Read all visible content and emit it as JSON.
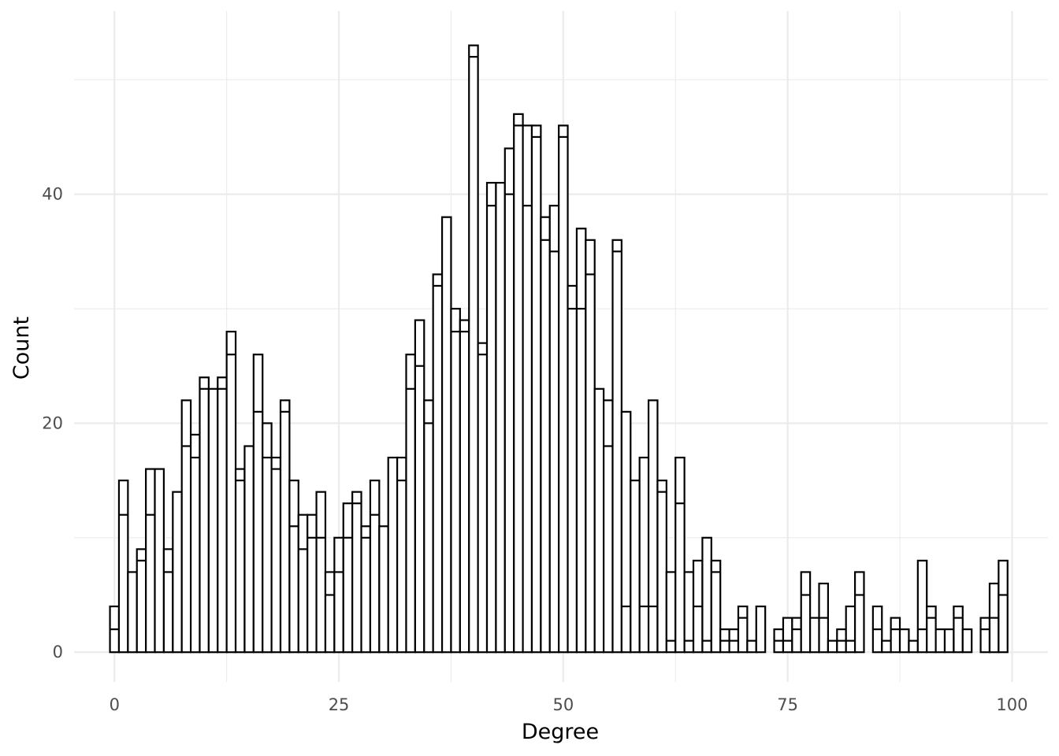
{
  "chart_data": {
    "type": "bar",
    "stacked": true,
    "xlabel": "Degree",
    "ylabel": "Count",
    "xlim": [
      -4.5,
      104
    ],
    "ylim": [
      -2.6,
      56
    ],
    "x_ticks": [
      0,
      25,
      50,
      75,
      100
    ],
    "x_tick_labels": [
      "0",
      "25",
      "50",
      "75",
      "100"
    ],
    "y_ticks": [
      0,
      20,
      40
    ],
    "y_tick_labels": [
      "0",
      "20",
      "40"
    ],
    "grid": true,
    "legend": "none",
    "x": [
      0,
      1,
      2,
      3,
      4,
      5,
      6,
      7,
      8,
      9,
      10,
      11,
      12,
      13,
      14,
      15,
      16,
      17,
      18,
      19,
      20,
      21,
      22,
      23,
      24,
      25,
      26,
      27,
      28,
      29,
      30,
      31,
      32,
      33,
      34,
      35,
      36,
      37,
      38,
      39,
      40,
      41,
      42,
      43,
      44,
      45,
      46,
      47,
      48,
      49,
      50,
      51,
      52,
      53,
      54,
      55,
      56,
      57,
      58,
      59,
      60,
      61,
      62,
      63,
      64,
      65,
      66,
      67,
      68,
      69,
      70,
      71,
      72,
      73,
      74,
      75,
      76,
      77,
      78,
      79,
      80,
      81,
      82,
      83,
      84,
      85,
      86,
      87,
      88,
      89,
      90,
      91,
      92,
      93,
      94,
      95,
      96,
      97,
      98,
      99
    ],
    "series": [
      {
        "values": [
          2,
          12,
          7,
          8,
          12,
          16,
          7,
          14,
          18,
          17,
          23,
          23,
          23,
          26,
          15,
          18,
          21,
          17,
          16,
          21,
          11,
          9,
          10,
          10,
          5,
          7,
          10,
          13,
          10,
          12,
          11,
          17,
          15,
          23,
          25,
          20,
          32,
          38,
          28,
          28,
          52,
          26,
          39,
          41,
          40,
          46,
          39,
          45,
          36,
          35,
          45,
          30,
          30,
          33,
          23,
          18,
          35,
          4,
          15,
          4,
          4,
          14,
          1,
          13,
          1,
          4,
          1,
          7,
          1,
          1,
          3,
          1,
          4,
          0,
          1,
          1,
          2,
          5,
          3,
          3,
          1,
          1,
          1,
          5,
          0,
          2,
          1,
          2,
          2,
          1,
          2,
          3,
          2,
          2,
          3,
          2,
          0,
          2,
          3,
          5
        ]
      },
      {
        "values": [
          2,
          3,
          0,
          1,
          4,
          0,
          2,
          0,
          4,
          2,
          1,
          0,
          1,
          2,
          1,
          0,
          5,
          3,
          1,
          1,
          4,
          3,
          2,
          4,
          2,
          3,
          3,
          1,
          1,
          3,
          0,
          0,
          2,
          3,
          4,
          2,
          1,
          0,
          2,
          1,
          1,
          1,
          2,
          0,
          4,
          1,
          7,
          1,
          2,
          4,
          1,
          2,
          7,
          3,
          0,
          4,
          1,
          17,
          0,
          13,
          18,
          1,
          6,
          4,
          6,
          4,
          9,
          1,
          1,
          1,
          1,
          0,
          0,
          0,
          1,
          2,
          1,
          2,
          0,
          3,
          0,
          1,
          3,
          2,
          0,
          2,
          0,
          1,
          0,
          0,
          6,
          1,
          0,
          0,
          1,
          0,
          0,
          1,
          3,
          3
        ]
      }
    ]
  }
}
